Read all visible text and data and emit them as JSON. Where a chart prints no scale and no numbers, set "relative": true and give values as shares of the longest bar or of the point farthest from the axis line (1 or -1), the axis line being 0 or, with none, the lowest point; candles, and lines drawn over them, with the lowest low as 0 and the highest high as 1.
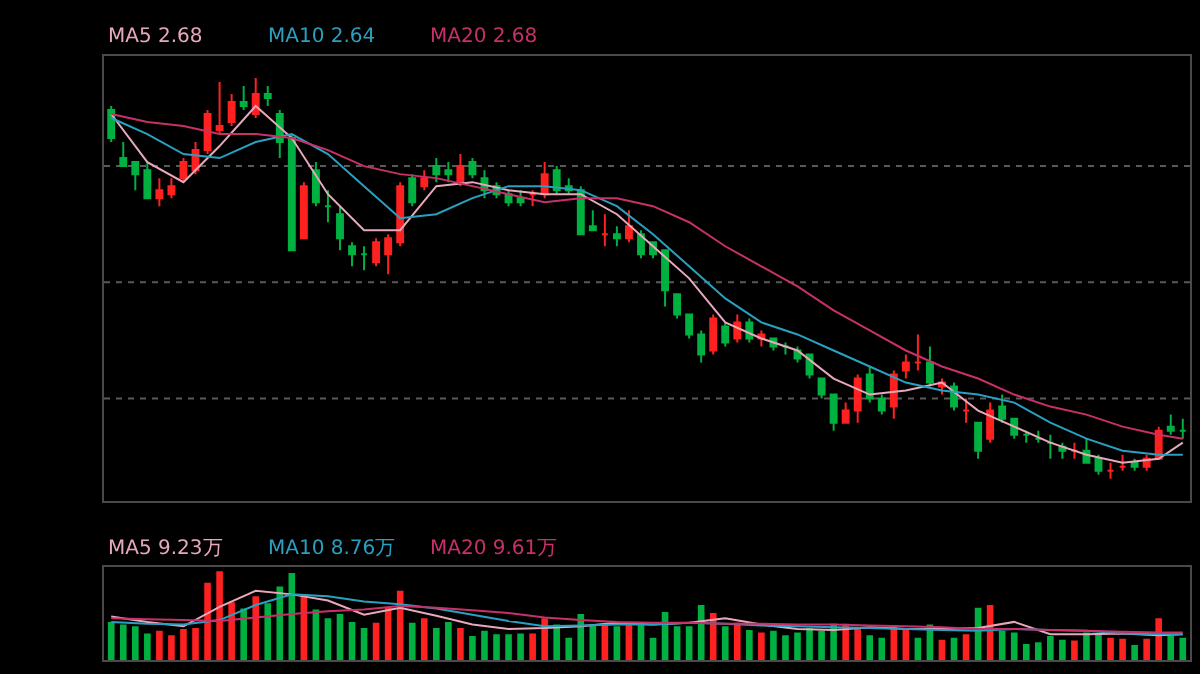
{
  "chart_data": [
    {
      "type": "candlestick",
      "relative": true,
      "legend": false,
      "ref_lines": [
        {
          "axis": "y",
          "value": 0.78,
          "color": "#5a5a5a",
          "line_style": "dotted"
        },
        {
          "axis": "y",
          "value": 0.49,
          "color": "#5a5a5a",
          "line_style": "dotted"
        },
        {
          "axis": "y",
          "value": 0.2,
          "color": "#5a5a5a",
          "line_style": "dotted"
        }
      ],
      "categories": [
        null,
        null,
        null,
        null,
        null,
        null,
        null,
        null,
        null,
        null,
        null,
        null,
        null,
        null,
        null,
        null,
        null,
        null,
        null,
        null,
        null,
        null,
        null,
        null,
        null,
        null,
        null,
        null,
        null,
        null,
        null,
        null,
        null,
        null,
        null,
        null,
        null,
        null,
        null,
        null,
        null,
        null,
        null,
        null,
        null,
        null,
        null,
        null,
        null,
        null,
        null,
        null,
        null,
        null,
        null,
        null,
        null,
        null,
        null,
        null,
        null,
        null,
        null,
        null,
        null,
        null,
        null,
        null,
        null,
        null,
        null,
        null,
        null,
        null,
        null,
        null,
        null,
        null,
        null,
        null,
        null,
        null,
        null,
        null,
        null,
        null,
        null,
        null,
        null,
        null
      ],
      "colors": [
        "#00b040",
        "#00b040",
        "#00b040",
        "#00b040",
        "#ff2020",
        "#ff2020",
        "#ff2020",
        "#ff2020",
        "#ff2020",
        "#ff2020",
        "#ff2020",
        "#00b040",
        "#ff2020",
        "#00b040",
        "#00b040",
        "#00b040",
        "#ff2020",
        "#00b040",
        "#00b040",
        "#00b040",
        "#00b040",
        "#00b040",
        "#ff2020",
        "#ff2020",
        "#ff2020",
        "#00b040",
        "#ff2020",
        "#00b040",
        "#00b040",
        "#ff2020",
        "#00b040",
        "#00b040",
        "#00b040",
        "#00b040",
        "#00b040",
        "#ff2020",
        "#ff2020",
        "#00b040",
        "#00b040",
        "#00b040",
        "#00b040",
        "#ff2020",
        "#00b040",
        "#ff2020",
        "#00b040",
        "#00b040",
        "#00b040",
        "#00b040",
        "#00b040",
        "#00b040",
        "#ff2020",
        "#00b040",
        "#ff2020",
        "#00b040",
        "#ff2020",
        "#00b040",
        "#00b040",
        "#00b040",
        "#00b040",
        "#00b040",
        "#00b040",
        "#ff2020",
        "#ff2020",
        "#00b040",
        "#00b040",
        "#ff2020",
        "#ff2020",
        "#ff2020",
        "#00b040",
        "#ff2020",
        "#00b040",
        "#ff2020",
        "#00b040",
        "#ff2020",
        "#00b040",
        "#00b040",
        "#00b040",
        "#00b040",
        "#00b040",
        "#00b040",
        "#ff2020",
        "#00b040",
        "#00b040",
        "#ff2020",
        "#ff2020",
        "#00b040",
        "#ff2020",
        "#ff2020",
        "#00b040",
        "#00b040"
      ],
      "ohlc": [
        [
          0.92,
          0.93,
          0.84,
          0.85
        ],
        [
          0.8,
          0.84,
          0.78,
          0.78
        ],
        [
          0.79,
          0.79,
          0.72,
          0.76
        ],
        [
          0.77,
          0.79,
          0.7,
          0.7
        ],
        [
          0.7,
          0.75,
          0.68,
          0.72
        ],
        [
          0.71,
          0.75,
          0.7,
          0.73
        ],
        [
          0.75,
          0.8,
          0.74,
          0.79
        ],
        [
          0.77,
          0.84,
          0.76,
          0.82
        ],
        [
          0.82,
          0.92,
          0.81,
          0.91
        ],
        [
          0.87,
          0.99,
          0.86,
          0.88
        ],
        [
          0.89,
          0.96,
          0.88,
          0.94
        ],
        [
          0.94,
          0.98,
          0.92,
          0.93
        ],
        [
          0.91,
          1.0,
          0.9,
          0.96
        ],
        [
          0.96,
          0.98,
          0.93,
          0.95
        ],
        [
          0.91,
          0.92,
          0.8,
          0.84
        ],
        [
          0.85,
          0.86,
          0.57,
          0.57
        ],
        [
          0.6,
          0.74,
          0.6,
          0.73
        ],
        [
          0.77,
          0.79,
          0.68,
          0.69
        ],
        [
          0.68,
          0.72,
          0.64,
          0.68
        ],
        [
          0.66,
          0.68,
          0.57,
          0.6
        ],
        [
          0.58,
          0.59,
          0.53,
          0.56
        ],
        [
          0.56,
          0.58,
          0.52,
          0.56
        ],
        [
          0.54,
          0.6,
          0.53,
          0.59
        ],
        [
          0.56,
          0.61,
          0.51,
          0.6
        ],
        [
          0.59,
          0.74,
          0.58,
          0.73
        ],
        [
          0.75,
          0.76,
          0.68,
          0.69
        ],
        [
          0.73,
          0.77,
          0.72,
          0.75
        ],
        [
          0.78,
          0.8,
          0.74,
          0.76
        ],
        [
          0.77,
          0.79,
          0.74,
          0.76
        ],
        [
          0.74,
          0.81,
          0.73,
          0.78
        ],
        [
          0.79,
          0.8,
          0.75,
          0.76
        ],
        [
          0.75,
          0.77,
          0.7,
          0.72
        ],
        [
          0.73,
          0.74,
          0.7,
          0.71
        ],
        [
          0.71,
          0.72,
          0.68,
          0.69
        ],
        [
          0.7,
          0.72,
          0.68,
          0.69
        ],
        [
          0.71,
          0.72,
          0.68,
          0.71
        ],
        [
          0.71,
          0.79,
          0.7,
          0.76
        ],
        [
          0.77,
          0.78,
          0.71,
          0.72
        ],
        [
          0.73,
          0.75,
          0.71,
          0.72
        ],
        [
          0.72,
          0.73,
          0.61,
          0.61
        ],
        [
          0.63,
          0.67,
          0.62,
          0.62
        ],
        [
          0.61,
          0.66,
          0.58,
          0.61
        ],
        [
          0.61,
          0.63,
          0.58,
          0.6
        ],
        [
          0.6,
          0.67,
          0.59,
          0.63
        ],
        [
          0.61,
          0.62,
          0.55,
          0.56
        ],
        [
          0.59,
          0.59,
          0.55,
          0.56
        ],
        [
          0.57,
          0.57,
          0.43,
          0.47
        ],
        [
          0.46,
          0.46,
          0.4,
          0.41
        ],
        [
          0.41,
          0.41,
          0.35,
          0.36
        ],
        [
          0.36,
          0.37,
          0.29,
          0.31
        ],
        [
          0.32,
          0.41,
          0.31,
          0.4
        ],
        [
          0.38,
          0.39,
          0.33,
          0.34
        ],
        [
          0.35,
          0.41,
          0.34,
          0.39
        ],
        [
          0.39,
          0.4,
          0.34,
          0.35
        ],
        [
          0.35,
          0.37,
          0.33,
          0.36
        ],
        [
          0.35,
          0.35,
          0.32,
          0.33
        ],
        [
          0.33,
          0.34,
          0.31,
          0.33
        ],
        [
          0.32,
          0.33,
          0.29,
          0.3
        ],
        [
          0.31,
          0.31,
          0.25,
          0.26
        ],
        [
          0.25,
          0.25,
          0.2,
          0.21
        ],
        [
          0.21,
          0.21,
          0.12,
          0.14
        ],
        [
          0.14,
          0.19,
          0.14,
          0.17
        ],
        [
          0.17,
          0.26,
          0.14,
          0.25
        ],
        [
          0.26,
          0.28,
          0.19,
          0.2
        ],
        [
          0.2,
          0.21,
          0.16,
          0.17
        ],
        [
          0.18,
          0.27,
          0.15,
          0.26
        ],
        [
          0.27,
          0.31,
          0.25,
          0.29
        ],
        [
          0.29,
          0.36,
          0.27,
          0.29
        ],
        [
          0.29,
          0.33,
          0.23,
          0.24
        ],
        [
          0.23,
          0.25,
          0.21,
          0.24
        ],
        [
          0.23,
          0.24,
          0.17,
          0.18
        ],
        [
          0.17,
          0.2,
          0.14,
          0.17
        ],
        [
          0.14,
          0.14,
          0.05,
          0.07
        ],
        [
          0.1,
          0.19,
          0.09,
          0.17
        ],
        [
          0.18,
          0.21,
          0.14,
          0.15
        ],
        [
          0.15,
          0.15,
          0.1,
          0.11
        ],
        [
          0.11,
          0.12,
          0.09,
          0.11
        ],
        [
          0.1,
          0.12,
          0.09,
          0.1
        ],
        [
          0.09,
          0.11,
          0.05,
          0.09
        ],
        [
          0.08,
          0.09,
          0.05,
          0.07
        ],
        [
          0.07,
          0.09,
          0.05,
          0.07
        ],
        [
          0.07,
          0.1,
          0.04,
          0.04
        ],
        [
          0.05,
          0.06,
          0.01,
          0.02
        ],
        [
          0.02,
          0.04,
          0.0,
          0.02
        ],
        [
          0.03,
          0.06,
          0.02,
          0.03
        ],
        [
          0.04,
          0.05,
          0.02,
          0.03
        ],
        [
          0.03,
          0.06,
          0.02,
          0.05
        ],
        [
          0.05,
          0.13,
          0.05,
          0.12
        ],
        [
          0.13,
          0.16,
          0.11,
          0.12
        ],
        [
          0.12,
          0.15,
          0.1,
          0.12
        ]
      ],
      "series": [
        {
          "name": "MA5 2.68",
          "type": "line",
          "color": "#e8a8bc",
          "values": [
            0.91,
            null,
            null,
            0.79,
            null,
            null,
            0.74,
            null,
            null,
            0.83,
            null,
            null,
            0.93,
            null,
            null,
            0.85,
            null,
            null,
            0.71,
            null,
            null,
            0.62,
            null,
            null,
            0.62,
            null,
            null,
            0.73,
            null,
            null,
            0.74,
            null,
            null,
            0.72,
            null,
            null,
            0.71,
            null,
            null,
            0.71,
            null,
            null,
            0.66,
            null,
            null,
            0.58,
            null,
            null,
            0.5,
            null,
            null,
            0.39,
            null,
            null,
            0.35,
            null,
            null,
            0.32,
            null,
            null,
            0.25,
            null,
            null,
            0.21,
            null,
            null,
            0.22,
            null,
            null,
            0.24,
            null,
            null,
            0.17,
            null,
            null,
            0.13,
            null,
            null,
            0.09,
            null,
            null,
            0.06,
            null,
            null,
            0.04,
            null,
            null,
            0.05,
            null,
            0.09
          ]
        },
        {
          "name": "MA10 2.64",
          "type": "line",
          "color": "#2aa0c0",
          "values": [
            0.9,
            null,
            null,
            0.86,
            null,
            null,
            0.81,
            null,
            null,
            0.8,
            null,
            null,
            0.84,
            null,
            null,
            0.86,
            null,
            null,
            0.81,
            null,
            null,
            0.73,
            null,
            null,
            0.65,
            null,
            null,
            0.66,
            null,
            null,
            0.7,
            null,
            null,
            0.73,
            null,
            null,
            0.73,
            null,
            null,
            0.72,
            null,
            null,
            0.68,
            null,
            null,
            0.61,
            null,
            null,
            0.53,
            null,
            null,
            0.45,
            null,
            null,
            0.39,
            null,
            null,
            0.36,
            null,
            null,
            0.32,
            null,
            null,
            0.28,
            null,
            null,
            0.24,
            null,
            null,
            0.22,
            null,
            null,
            0.21,
            null,
            null,
            0.19,
            null,
            null,
            0.14,
            null,
            null,
            0.1,
            null,
            null,
            0.07,
            null,
            null,
            0.06,
            null,
            0.06
          ]
        },
        {
          "name": "MA20 2.68",
          "type": "line",
          "color": "#c8306a",
          "values": [
            0.91,
            null,
            null,
            0.89,
            null,
            null,
            0.88,
            null,
            null,
            0.86,
            null,
            null,
            0.86,
            null,
            null,
            0.85,
            null,
            null,
            0.82,
            null,
            null,
            0.78,
            null,
            null,
            0.76,
            null,
            null,
            0.75,
            null,
            null,
            0.73,
            null,
            null,
            0.71,
            null,
            null,
            0.69,
            null,
            null,
            0.7,
            null,
            null,
            0.7,
            null,
            null,
            0.68,
            null,
            null,
            0.64,
            null,
            null,
            0.58,
            null,
            null,
            0.53,
            null,
            null,
            0.48,
            null,
            null,
            0.42,
            null,
            null,
            0.37,
            null,
            null,
            0.32,
            null,
            null,
            0.28,
            null,
            null,
            0.25,
            null,
            null,
            0.21,
            null,
            null,
            0.18,
            null,
            null,
            0.16,
            null,
            null,
            0.13,
            null,
            null,
            0.11,
            null,
            0.1
          ]
        }
      ]
    },
    {
      "type": "bar",
      "relative": true,
      "legend": false,
      "categories": [
        null,
        null,
        null,
        null,
        null,
        null,
        null,
        null,
        null,
        null,
        null,
        null,
        null,
        null,
        null,
        null,
        null,
        null,
        null,
        null,
        null,
        null,
        null,
        null,
        null,
        null,
        null,
        null,
        null,
        null,
        null,
        null,
        null,
        null,
        null,
        null,
        null,
        null,
        null,
        null,
        null,
        null,
        null,
        null,
        null,
        null,
        null,
        null,
        null,
        null,
        null,
        null,
        null,
        null,
        null,
        null,
        null,
        null,
        null,
        null,
        null,
        null,
        null,
        null,
        null,
        null,
        null,
        null,
        null,
        null,
        null,
        null,
        null,
        null,
        null,
        null,
        null,
        null,
        null,
        null,
        null,
        null,
        null,
        null,
        null,
        null,
        null,
        null,
        null,
        null
      ],
      "series": [
        {
          "type": "bar",
          "values": [
            0.43,
            0.4,
            0.38,
            0.3,
            0.33,
            0.28,
            0.35,
            0.36,
            0.87,
            1.0,
            0.65,
            0.58,
            0.72,
            0.64,
            0.83,
            0.98,
            0.72,
            0.57,
            0.47,
            0.52,
            0.43,
            0.36,
            0.42,
            0.59,
            0.78,
            0.42,
            0.47,
            0.36,
            0.43,
            0.36,
            0.27,
            0.33,
            0.29,
            0.29,
            0.3,
            0.3,
            0.47,
            0.4,
            0.25,
            0.52,
            0.4,
            0.4,
            0.38,
            0.4,
            0.4,
            0.25,
            0.54,
            0.38,
            0.38,
            0.62,
            0.53,
            0.38,
            0.42,
            0.34,
            0.31,
            0.33,
            0.28,
            0.31,
            0.36,
            0.33,
            0.41,
            0.41,
            0.36,
            0.28,
            0.25,
            0.38,
            0.36,
            0.25,
            0.4,
            0.23,
            0.25,
            0.29,
            0.59,
            0.62,
            0.33,
            0.31,
            0.18,
            0.2,
            0.27,
            0.23,
            0.22,
            0.31,
            0.29,
            0.25,
            0.24,
            0.17,
            0.24,
            0.47,
            0.27,
            0.25
          ],
          "colors": [
            "#00b040",
            "#00b040",
            "#00b040",
            "#00b040",
            "#ff2020",
            "#ff2020",
            "#ff2020",
            "#ff2020",
            "#ff2020",
            "#ff2020",
            "#ff2020",
            "#00b040",
            "#ff2020",
            "#00b040",
            "#00b040",
            "#00b040",
            "#ff2020",
            "#00b040",
            "#00b040",
            "#00b040",
            "#00b040",
            "#00b040",
            "#ff2020",
            "#ff2020",
            "#ff2020",
            "#00b040",
            "#ff2020",
            "#00b040",
            "#00b040",
            "#ff2020",
            "#00b040",
            "#00b040",
            "#00b040",
            "#00b040",
            "#00b040",
            "#ff2020",
            "#ff2020",
            "#00b040",
            "#00b040",
            "#00b040",
            "#00b040",
            "#ff2020",
            "#00b040",
            "#ff2020",
            "#00b040",
            "#00b040",
            "#00b040",
            "#00b040",
            "#00b040",
            "#00b040",
            "#ff2020",
            "#00b040",
            "#ff2020",
            "#00b040",
            "#ff2020",
            "#00b040",
            "#00b040",
            "#00b040",
            "#00b040",
            "#00b040",
            "#00b040",
            "#ff2020",
            "#ff2020",
            "#00b040",
            "#00b040",
            "#ff2020",
            "#ff2020",
            "#00b040",
            "#00b040",
            "#ff2020",
            "#00b040",
            "#ff2020",
            "#00b040",
            "#ff2020",
            "#00b040",
            "#00b040",
            "#00b040",
            "#00b040",
            "#00b040",
            "#00b040",
            "#ff2020",
            "#00b040",
            "#00b040",
            "#ff2020",
            "#ff2020",
            "#00b040",
            "#ff2020",
            "#ff2020",
            "#00b040",
            "#00b040"
          ]
        },
        {
          "name": "MA5 9.23万",
          "type": "line",
          "color": "#e8a8bc",
          "values": [
            0.49,
            null,
            null,
            0.43,
            null,
            null,
            0.38,
            null,
            null,
            0.6,
            null,
            null,
            0.78,
            null,
            null,
            0.74,
            null,
            null,
            0.67,
            null,
            null,
            0.51,
            null,
            null,
            0.59,
            null,
            null,
            0.5,
            null,
            null,
            0.4,
            null,
            null,
            0.35,
            null,
            null,
            0.36,
            null,
            null,
            0.38,
            null,
            null,
            0.42,
            null,
            null,
            0.4,
            null,
            null,
            0.42,
            null,
            null,
            0.47,
            null,
            null,
            0.4,
            null,
            null,
            0.35,
            null,
            null,
            0.34,
            null,
            null,
            0.37,
            null,
            null,
            0.35,
            null,
            null,
            0.35,
            null,
            null,
            0.36,
            null,
            null,
            0.43,
            null,
            null,
            0.29,
            null,
            null,
            0.29,
            null,
            null,
            0.3,
            null,
            null,
            0.28,
            null,
            0.29
          ]
        },
        {
          "name": "MA10 8.76万",
          "type": "line",
          "color": "#2aa0c0",
          "values": [
            0.43,
            null,
            null,
            0.41,
            null,
            null,
            0.4,
            null,
            null,
            0.45,
            null,
            null,
            0.62,
            null,
            null,
            0.74,
            null,
            null,
            0.72,
            null,
            null,
            0.66,
            null,
            null,
            0.63,
            null,
            null,
            0.58,
            null,
            null,
            0.51,
            null,
            null,
            0.44,
            null,
            null,
            0.38,
            null,
            null,
            0.39,
            null,
            null,
            0.4,
            null,
            null,
            0.4,
            null,
            null,
            0.42,
            null,
            null,
            0.41,
            null,
            null,
            0.39,
            null,
            null,
            0.38,
            null,
            null,
            0.37,
            null,
            null,
            0.36,
            null,
            null,
            0.35,
            null,
            null,
            0.34,
            null,
            null,
            0.33,
            null,
            null,
            0.35,
            null,
            null,
            0.34,
            null,
            null,
            0.33,
            null,
            null,
            0.3,
            null,
            null,
            0.29,
            null,
            0.29
          ]
        },
        {
          "name": "MA20 9.61万",
          "type": "line",
          "color": "#c8306a",
          "values": [
            0.47,
            null,
            null,
            0.46,
            null,
            null,
            0.45,
            null,
            null,
            0.44,
            null,
            null,
            0.48,
            null,
            null,
            0.52,
            null,
            null,
            0.55,
            null,
            null,
            0.57,
            null,
            null,
            0.61,
            null,
            null,
            0.59,
            null,
            null,
            0.56,
            null,
            null,
            0.53,
            null,
            null,
            0.48,
            null,
            null,
            0.45,
            null,
            null,
            0.43,
            null,
            null,
            0.42,
            null,
            null,
            0.42,
            null,
            null,
            0.41,
            null,
            null,
            0.41,
            null,
            null,
            0.4,
            null,
            null,
            0.4,
            null,
            null,
            0.39,
            null,
            null,
            0.38,
            null,
            null,
            0.37,
            null,
            null,
            0.35,
            null,
            null,
            0.35,
            null,
            null,
            0.34,
            null,
            null,
            0.33,
            null,
            null,
            0.32,
            null,
            null,
            0.31,
            null,
            0.31
          ]
        }
      ]
    }
  ]
}
